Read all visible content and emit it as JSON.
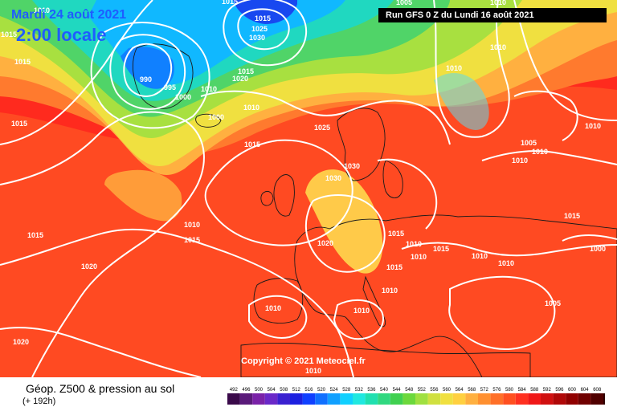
{
  "header": {
    "date": "Mardi 24 août 2021",
    "local_time": "2:00 locale",
    "run": "Run GFS 0 Z du Lundi 16 août 2021"
  },
  "footer": {
    "title": "Géop. Z500 & pression au sol",
    "step": "(+ 192h)",
    "copyright": "Copyright © 2021 Meteociel.fr"
  },
  "legend": {
    "values": [
      "492",
      "496",
      "500",
      "504",
      "508",
      "512",
      "516",
      "520",
      "524",
      "528",
      "532",
      "536",
      "540",
      "544",
      "548",
      "552",
      "556",
      "560",
      "564",
      "568",
      "572",
      "576",
      "580",
      "584",
      "588",
      "592",
      "596",
      "600",
      "604",
      "608",
      "612"
    ],
    "colors": [
      "#3a0a4a",
      "#5a1a7a",
      "#7a22a8",
      "#6a28c8",
      "#3a20d0",
      "#1c20e0",
      "#1040ff",
      "#1070ff",
      "#10a0ff",
      "#10d0ff",
      "#20e8e0",
      "#20e0b0",
      "#30d880",
      "#40d050",
      "#6cd83c",
      "#a0e040",
      "#d0e040",
      "#f0e040",
      "#ffd040",
      "#ffb040",
      "#ff9030",
      "#ff7028",
      "#ff5020",
      "#ff3020",
      "#f01818",
      "#d01010",
      "#b00808",
      "#900000",
      "#700000",
      "#500000",
      "#300000"
    ]
  },
  "map_labels": [
    {
      "text": "1010",
      "kind": "isobar"
    },
    {
      "text": "1015",
      "kind": "isobar"
    },
    {
      "text": "1015",
      "kind": "isobar"
    },
    {
      "text": "1005",
      "kind": "isobar"
    },
    {
      "text": "1015",
      "kind": "isobar"
    },
    {
      "text": "1025",
      "kind": "isobar"
    },
    {
      "text": "1030",
      "kind": "isobar"
    },
    {
      "text": "1010",
      "kind": "isobar"
    },
    {
      "text": "1010",
      "kind": "isobar"
    },
    {
      "text": "1015",
      "kind": "isobar"
    },
    {
      "text": "990",
      "kind": "isobar"
    },
    {
      "text": "995",
      "kind": "isobar"
    },
    {
      "text": "1000",
      "kind": "isobar"
    },
    {
      "text": "1010",
      "kind": "isobar"
    },
    {
      "text": "1015",
      "kind": "isobar"
    },
    {
      "text": "1020",
      "kind": "isobar"
    },
    {
      "text": "1010",
      "kind": "isobar"
    },
    {
      "text": "1000",
      "kind": "isobar"
    },
    {
      "text": "1015",
      "kind": "isobar"
    },
    {
      "text": "1025",
      "kind": "isobar"
    },
    {
      "text": "1015",
      "kind": "isobar"
    },
    {
      "text": "1030",
      "kind": "isobar"
    },
    {
      "text": "1030",
      "kind": "isobar"
    },
    {
      "text": "1010",
      "kind": "isobar"
    },
    {
      "text": "1010",
      "kind": "isobar"
    },
    {
      "text": "1005",
      "kind": "isobar"
    },
    {
      "text": "1010",
      "kind": "isobar"
    },
    {
      "text": "1010",
      "kind": "isobar"
    },
    {
      "text": "1010",
      "kind": "isobar"
    },
    {
      "text": "1015",
      "kind": "isobar"
    },
    {
      "text": "1015",
      "kind": "isobar"
    },
    {
      "text": "1015",
      "kind": "isobar"
    },
    {
      "text": "1010",
      "kind": "isobar"
    },
    {
      "text": "1020",
      "kind": "isobar"
    },
    {
      "text": "1015",
      "kind": "isobar"
    },
    {
      "text": "1015",
      "kind": "isobar"
    },
    {
      "text": "1010",
      "kind": "isobar"
    },
    {
      "text": "1010",
      "kind": "isobar"
    },
    {
      "text": "1000",
      "kind": "isobar"
    },
    {
      "text": "1010",
      "kind": "isobar"
    },
    {
      "text": "1010",
      "kind": "isobar"
    },
    {
      "text": "1015",
      "kind": "isobar"
    },
    {
      "text": "1005",
      "kind": "isobar"
    },
    {
      "text": "1010",
      "kind": "isobar"
    },
    {
      "text": "1010",
      "kind": "isobar"
    },
    {
      "text": "1010",
      "kind": "isobar"
    },
    {
      "text": "1020",
      "kind": "isobar"
    },
    {
      "text": "1020",
      "kind": "isobar"
    }
  ]
}
